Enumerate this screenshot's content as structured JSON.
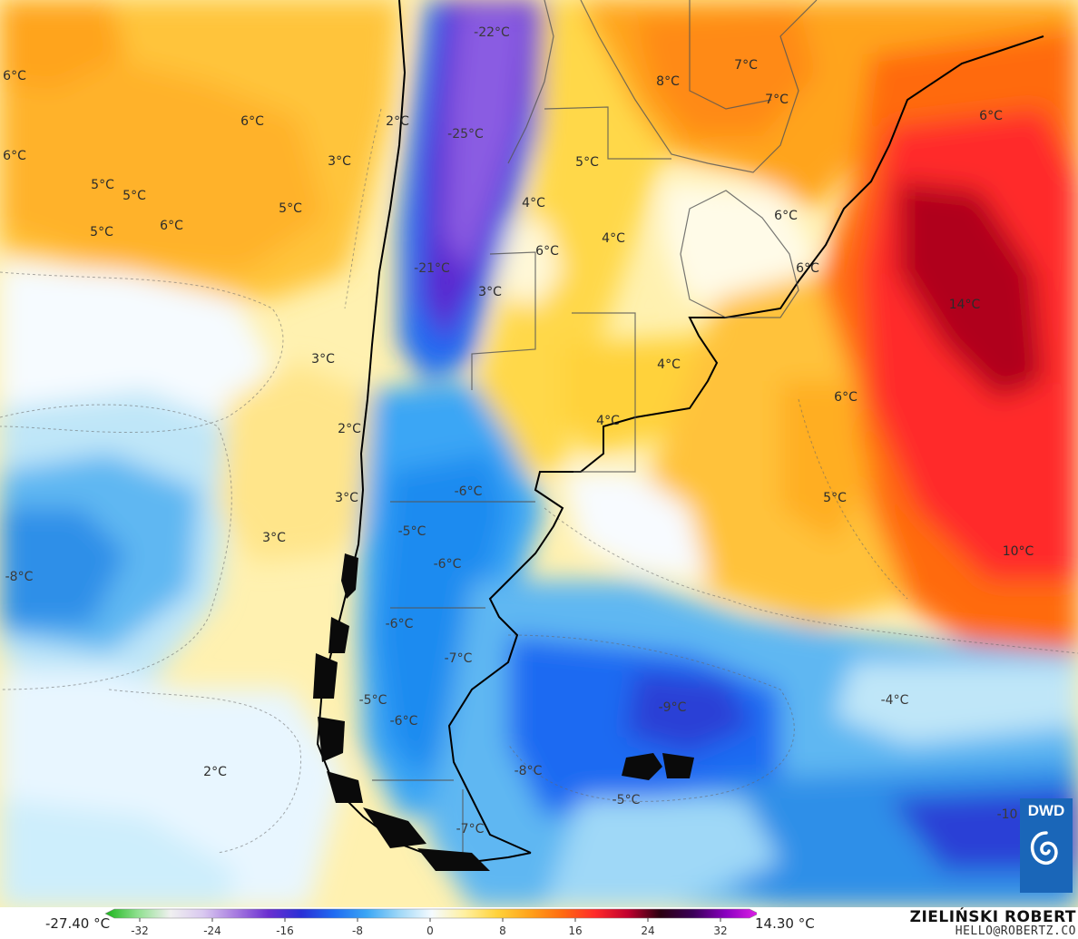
{
  "map": {
    "labels": [
      {
        "text": "-22°C",
        "tone": "cold"
      },
      {
        "text": "6°C",
        "tone": "warm"
      },
      {
        "text": "7°C",
        "tone": "warm"
      },
      {
        "text": "8°C",
        "tone": "warm"
      },
      {
        "text": "7°C",
        "tone": "warm"
      },
      {
        "text": "2°C",
        "tone": "warm"
      },
      {
        "text": "6°C",
        "tone": "warm"
      },
      {
        "text": "-25°C",
        "tone": "cold"
      },
      {
        "text": "6°C",
        "tone": "warm"
      },
      {
        "text": "6°C",
        "tone": "warm"
      },
      {
        "text": "3°C",
        "tone": "warm"
      },
      {
        "text": "5°C",
        "tone": "warm"
      },
      {
        "text": "5°C",
        "tone": "warm"
      },
      {
        "text": "5°C",
        "tone": "warm"
      },
      {
        "text": "5°C",
        "tone": "warm"
      },
      {
        "text": "6°C",
        "tone": "warm"
      },
      {
        "text": "5°C",
        "tone": "warm"
      },
      {
        "text": "4°C",
        "tone": "warm"
      },
      {
        "text": "6°C",
        "tone": "warm"
      },
      {
        "text": "6°C",
        "tone": "warm"
      },
      {
        "text": "4°C",
        "tone": "warm"
      },
      {
        "text": "6°C",
        "tone": "warm"
      },
      {
        "text": "-21°C",
        "tone": "cold"
      },
      {
        "text": "3°C",
        "tone": "warm"
      },
      {
        "text": "14°C",
        "tone": "warm"
      },
      {
        "text": "3°C",
        "tone": "warm"
      },
      {
        "text": "4°C",
        "tone": "warm"
      },
      {
        "text": "6°C",
        "tone": "warm"
      },
      {
        "text": "2°C",
        "tone": "warm"
      },
      {
        "text": "4°C",
        "tone": "warm"
      },
      {
        "text": "3°C",
        "tone": "warm"
      },
      {
        "text": "-6°C",
        "tone": "cold"
      },
      {
        "text": "5°C",
        "tone": "warm"
      },
      {
        "text": "-5°C",
        "tone": "cold"
      },
      {
        "text": "3°C",
        "tone": "warm"
      },
      {
        "text": "-6°C",
        "tone": "cold"
      },
      {
        "text": "10°C",
        "tone": "warm"
      },
      {
        "text": "-8°C",
        "tone": "cold"
      },
      {
        "text": "-6°C",
        "tone": "cold"
      },
      {
        "text": "-7°C",
        "tone": "cold"
      },
      {
        "text": "-5°C",
        "tone": "cold"
      },
      {
        "text": "-4°C",
        "tone": "cold"
      },
      {
        "text": "-9°C",
        "tone": "cold"
      },
      {
        "text": "-6°C",
        "tone": "cold"
      },
      {
        "text": "2°C",
        "tone": "warm"
      },
      {
        "text": "-8°C",
        "tone": "cold"
      },
      {
        "text": "-5°C",
        "tone": "cold"
      },
      {
        "text": "-10",
        "tone": "cold"
      },
      {
        "text": "-7°C",
        "tone": "cold"
      }
    ]
  },
  "colorbar": {
    "min_label": "-27.40 °C",
    "max_label": "14.30 °C",
    "ticks": [
      "-32",
      "-24",
      "-16",
      "-8",
      "0",
      "8",
      "16",
      "24",
      "32"
    ],
    "colors": [
      "#19b419",
      "#8fe08f",
      "#f0f0f0",
      "#d9c8f0",
      "#a77be0",
      "#6a2fd0",
      "#2a2fd6",
      "#1f6bf2",
      "#3aa6f5",
      "#9fd8f7",
      "#f5fbff",
      "#fff0a0",
      "#ffd23a",
      "#ffa21a",
      "#ff6a10",
      "#ff2a2a",
      "#c0002e",
      "#2a0010",
      "#3a0058",
      "#8a00c0",
      "#e020e8"
    ]
  },
  "credit": {
    "name": "ZIELIŃSKI ROBERT",
    "email": "HELLO@ROBERTZ.CO"
  },
  "logo": {
    "text": "DWD",
    "color": "#1a66b8"
  }
}
